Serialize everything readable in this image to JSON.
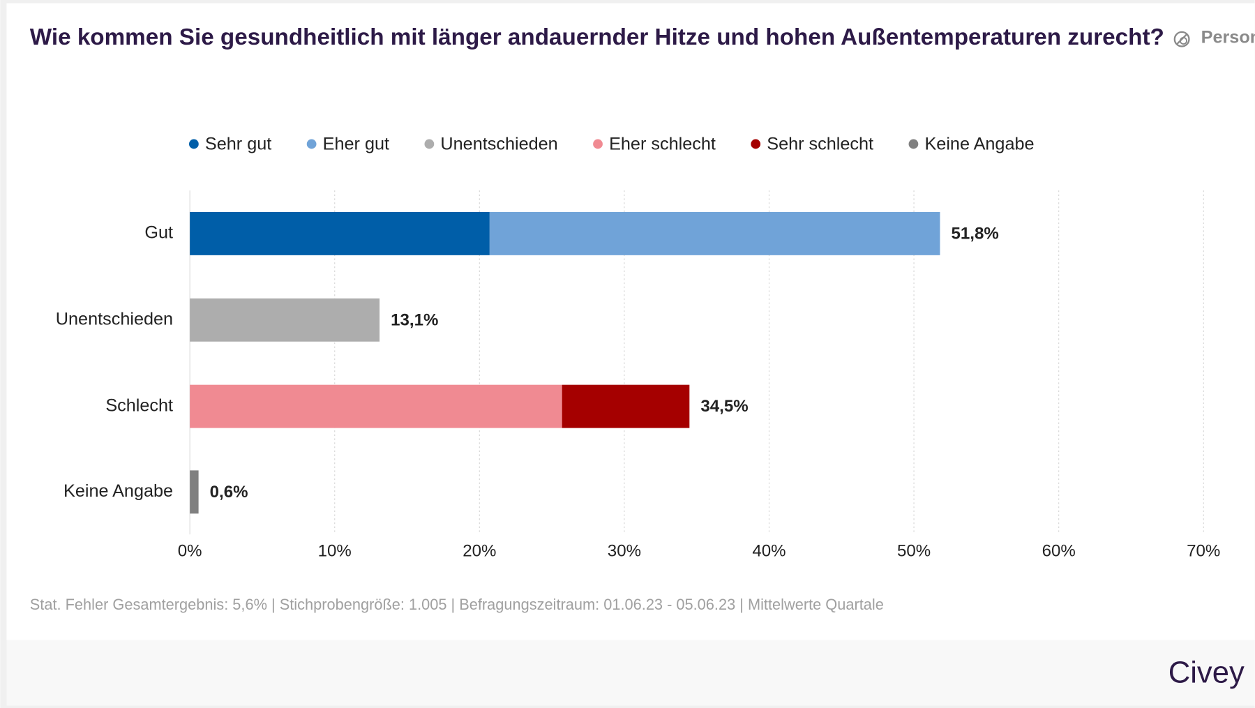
{
  "chart_data": {
    "type": "stacked_bar_horizontal",
    "title": "Wie kommen Sie gesundheitlich mit länger andauernder Hitze und hohen Außentemperaturen zurecht?",
    "subtitle": "Personen aus dem Rheinland oder Hamburg",
    "categories": [
      "Gut",
      "Unentschieden",
      "Schlecht",
      "Keine Angabe"
    ],
    "series": [
      {
        "name": "Sehr gut",
        "color": "#005ea8",
        "values": [
          20.7,
          null,
          null,
          null
        ]
      },
      {
        "name": "Eher gut",
        "color": "#70a3d8",
        "values": [
          31.1,
          null,
          null,
          null
        ]
      },
      {
        "name": "Unentschieden",
        "color": "#adadad",
        "values": [
          null,
          13.1,
          null,
          null
        ]
      },
      {
        "name": "Eher schlecht",
        "color": "#f08a92",
        "values": [
          null,
          null,
          25.7,
          null
        ]
      },
      {
        "name": "Sehr schlecht",
        "color": "#a50000",
        "values": [
          null,
          null,
          8.8,
          null
        ]
      },
      {
        "name": "Keine Angabe",
        "color": "#808080",
        "values": [
          null,
          null,
          null,
          0.6
        ]
      }
    ],
    "totals": [
      51.8,
      13.1,
      34.5,
      0.6
    ],
    "total_labels": [
      "51,8%",
      "13,1%",
      "34,5%",
      "0,6%"
    ],
    "xlim": [
      0,
      70
    ],
    "xticks": [
      {
        "value": 0,
        "label": "0%"
      },
      {
        "value": 10,
        "label": "10%"
      },
      {
        "value": 20,
        "label": "20%"
      },
      {
        "value": 30,
        "label": "30%"
      },
      {
        "value": 40,
        "label": "40%"
      },
      {
        "value": 50,
        "label": "50%"
      },
      {
        "value": 60,
        "label": "60%"
      },
      {
        "value": 70,
        "label": "70%"
      }
    ],
    "grid": true,
    "legend": "top",
    "footer": "Stat. Fehler Gesamtergebnis: 5,6% | Stichprobengröße: 1.005 | Befragungszeitraum: 01.06.23 - 05.06.23 | Mittelwerte Quartale",
    "brand": "Civey"
  }
}
